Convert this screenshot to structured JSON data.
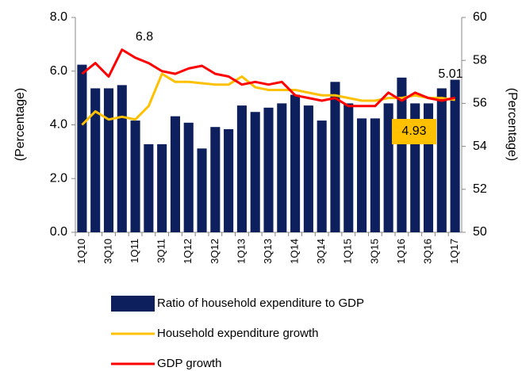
{
  "chart_data": {
    "type": "bar-line",
    "categories": [
      "1Q10",
      null,
      "3Q10",
      null,
      "1Q11",
      null,
      "3Q11",
      null,
      "1Q12",
      null,
      "3Q12",
      null,
      "1Q13",
      null,
      "3Q13",
      null,
      "1Q14",
      null,
      "3Q14",
      null,
      "1Q15",
      null,
      "3Q15",
      null,
      "1Q16",
      null,
      "3Q16",
      null,
      "1Q17"
    ],
    "series": [
      {
        "name": "Ratio of household expenditure to GDP",
        "kind": "bar",
        "axis": "y2",
        "color": "#0d1f5c",
        "values": [
          57.8,
          56.7,
          56.7,
          56.85,
          55.2,
          54.1,
          54.1,
          55.4,
          55.1,
          53.9,
          54.9,
          54.8,
          55.9,
          55.6,
          55.8,
          56.0,
          56.4,
          55.9,
          55.2,
          57.0,
          56.0,
          55.3,
          55.3,
          56.0,
          57.2,
          56.0,
          56.0,
          56.7,
          57.1
        ]
      },
      {
        "name": "Household expenditure growth",
        "kind": "line",
        "axis": "y",
        "color": "#ffc000",
        "values": [
          4.0,
          4.5,
          4.2,
          4.3,
          4.2,
          4.7,
          5.9,
          5.6,
          5.6,
          5.55,
          5.5,
          5.5,
          5.8,
          5.4,
          5.3,
          5.3,
          5.3,
          5.2,
          5.1,
          5.1,
          5.0,
          4.9,
          4.9,
          5.0,
          5.0,
          5.1,
          5.0,
          5.0,
          4.93
        ]
      },
      {
        "name": "GDP growth",
        "kind": "line",
        "axis": "y",
        "color": "#ff0000",
        "values": [
          5.9,
          6.3,
          5.8,
          6.8,
          6.5,
          6.3,
          6.0,
          5.9,
          6.1,
          6.2,
          5.9,
          5.8,
          5.5,
          5.6,
          5.5,
          5.6,
          5.1,
          5.0,
          4.9,
          5.0,
          4.7,
          4.7,
          4.7,
          5.2,
          4.9,
          5.2,
          5.0,
          4.9,
          5.01
        ]
      }
    ],
    "ylabel": "(Percentage)",
    "y2label": "(Percentage)",
    "ylim": [
      0,
      8
    ],
    "yticks": [
      {
        "value": 0,
        "label": "0.0"
      },
      {
        "value": 2,
        "label": "2.0"
      },
      {
        "value": 4,
        "label": "4.0"
      },
      {
        "value": 6,
        "label": "6.0"
      },
      {
        "value": 8,
        "label": "8.0"
      }
    ],
    "y2lim": [
      50,
      60
    ],
    "y2ticks": [
      50,
      52,
      54,
      56,
      58,
      60
    ],
    "annotations": [
      {
        "text": "6.8"
      },
      {
        "text": "5.01"
      },
      {
        "text": "4.93"
      }
    ]
  }
}
